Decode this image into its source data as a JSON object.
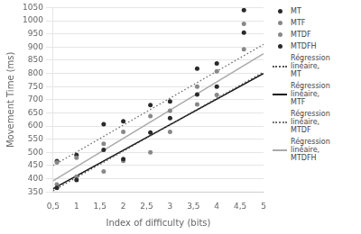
{
  "chart_data": {
    "type": "scatter",
    "xlabel": "Index of difficulty (bits)",
    "ylabel": "Movement Time (ms)",
    "xlim": [
      0.5,
      5.0
    ],
    "ylim": [
      350,
      1050
    ],
    "xticks": [
      {
        "value": 0.5,
        "label": "0,5"
      },
      1,
      {
        "value": 1.5,
        "label": "1,5"
      },
      2,
      {
        "value": 2.5,
        "label": "2,5"
      },
      3,
      {
        "value": 3.5,
        "label": "3,5"
      },
      4,
      {
        "value": 4.5,
        "label": "4,5"
      },
      5
    ],
    "yticks": [
      350,
      400,
      450,
      500,
      550,
      600,
      650,
      700,
      750,
      800,
      850,
      900,
      950,
      1000,
      1050
    ],
    "grid": "y",
    "legend": "right",
    "series": [
      {
        "name": "MT",
        "type": "scatter",
        "color": "#2a2a2a",
        "marker": "circle",
        "x": [
          0.58,
          1.0,
          1.58,
          2.0,
          2.58,
          3.0,
          3.58,
          4.0,
          4.58
        ],
        "values": [
          365,
          395,
          510,
          475,
          575,
          630,
          720,
          750,
          955
        ]
      },
      {
        "name": "MTF",
        "type": "scatter",
        "color": "#888888",
        "marker": "circle",
        "x": [
          0.58,
          1.0,
          1.58,
          2.0,
          2.58,
          3.0,
          3.58,
          4.0,
          4.58
        ],
        "values": [
          378,
          408,
          428,
          468,
          500,
          578,
          682,
          718,
          892
        ]
      },
      {
        "name": "MTDF",
        "type": "scatter",
        "color": "#888888",
        "marker": "circle",
        "x": [
          0.58,
          1.0,
          1.58,
          2.0,
          2.58,
          3.0,
          3.58,
          4.0,
          4.58
        ],
        "values": [
          462,
          480,
          533,
          578,
          638,
          658,
          750,
          808,
          988
        ]
      },
      {
        "name": "MTDFH",
        "type": "scatter",
        "color": "#2a2a2a",
        "marker": "circle",
        "x": [
          0.58,
          1.0,
          1.58,
          2.0,
          2.58,
          3.0,
          3.58,
          4.0,
          4.58
        ],
        "values": [
          467,
          490,
          607,
          618,
          680,
          693,
          818,
          838,
          1040
        ]
      },
      {
        "name": "Régression linéaire,\nMT",
        "type": "line",
        "color": "#555555",
        "line_style": "dotted",
        "x": [
          0.5,
          5.0
        ],
        "values": [
          355,
          805
        ]
      },
      {
        "name": "Régression linéaire,\nMTF",
        "type": "line",
        "color": "#111111",
        "line_style": "solid",
        "x": [
          0.5,
          5.0
        ],
        "values": [
          362,
          800
        ]
      },
      {
        "name": "Régression linéaire,\nMTDF",
        "type": "line",
        "color": "#777777",
        "line_style": "dotted",
        "x": [
          0.5,
          5.0
        ],
        "values": [
          450,
          910
        ]
      },
      {
        "name": "Régression linéaire,\nMTDFH",
        "type": "line",
        "color": "#aaaaaa",
        "line_style": "solid",
        "x": [
          0.5,
          5.0
        ],
        "values": [
          392,
          875
        ]
      }
    ]
  }
}
